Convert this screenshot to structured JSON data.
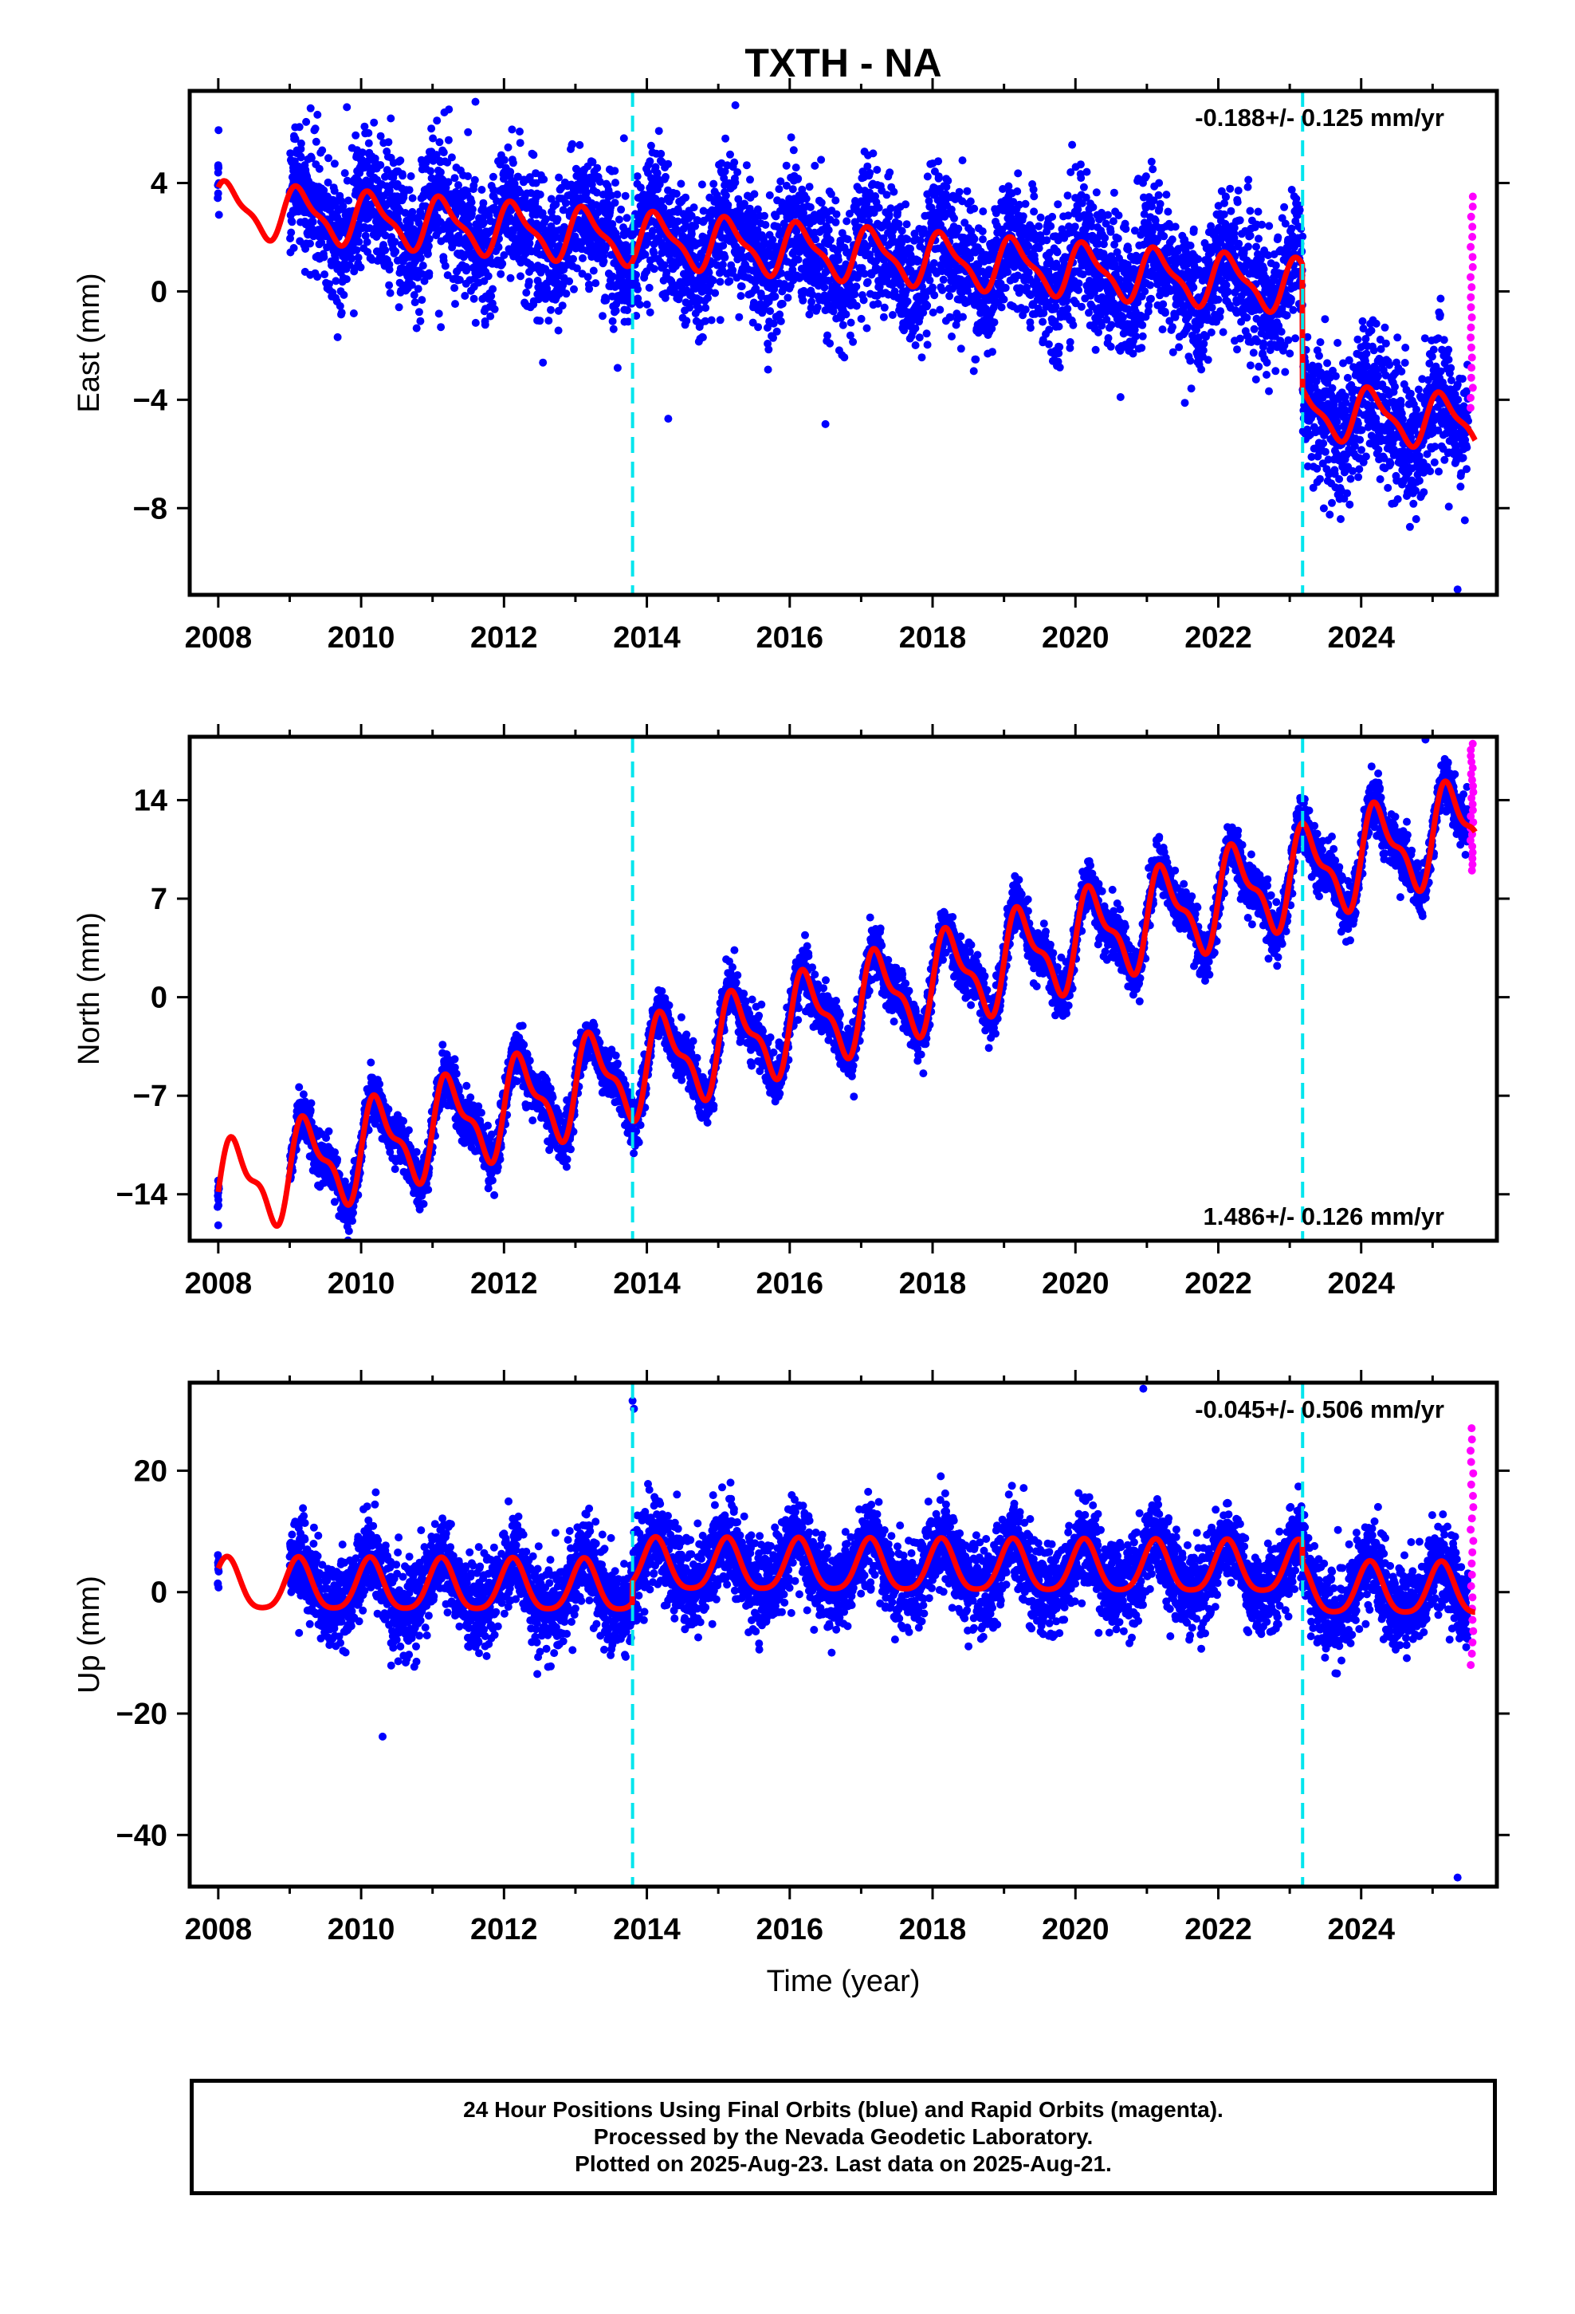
{
  "figure": {
    "title": "TXTH - NA",
    "xlabel": "Time (year)",
    "legend": {
      "line1": "24 Hour Positions Using Final Orbits (blue) and Rapid Orbits (magenta).",
      "line2": "Processed by the Nevada Geodetic Laboratory.",
      "line3": "Plotted on 2025-Aug-23. Last data on 2025-Aug-21."
    }
  },
  "colors": {
    "final_orbits": "#0000ff",
    "rapid_orbits": "#ff00ff",
    "model_fit": "#ff0000",
    "equipment_change": "#00e5ee"
  },
  "chart_data": [
    {
      "type": "scatter",
      "name": "east",
      "ylabel": "East (mm)",
      "rate_label": "-0.188+/- 0.125 mm/yr",
      "rate_label_position": "top-right",
      "xlim": [
        2007.6,
        2025.9
      ],
      "ylim": [
        -11.2,
        7.4
      ],
      "xticks": [
        2008,
        2010,
        2012,
        2014,
        2016,
        2018,
        2020,
        2022,
        2024
      ],
      "yticks": [
        4,
        0,
        -4,
        -8
      ],
      "vlines": [
        2013.8,
        2023.18
      ],
      "model": {
        "mean": 1.45,
        "rate": -0.188,
        "annual_amp": 0.9,
        "annual_phase": 0.6,
        "semiannual_amp": 0.3,
        "semiannual_phase": 1.2,
        "offsets": [
          {
            "year": 2023.18,
            "size": -4.6
          }
        ]
      },
      "scatter_sd": 1.25,
      "data_start": 2009.0,
      "rapid_range": [
        -4.3,
        3.5
      ],
      "outliers": [
        [
          2009.8,
          6.8
        ],
        [
          2011.6,
          7.0
        ],
        [
          2014.3,
          -4.7
        ],
        [
          2016.5,
          -4.9
        ],
        [
          2025.35,
          -11.0
        ]
      ]
    },
    {
      "type": "scatter",
      "name": "north",
      "ylabel": "North (mm)",
      "rate_label": "1.486+/- 0.126 mm/yr",
      "rate_label_position": "bottom-right",
      "xlim": [
        2007.6,
        2025.9
      ],
      "ylim": [
        -17.3,
        18.5
      ],
      "xticks": [
        2008,
        2010,
        2012,
        2014,
        2016,
        2018,
        2020,
        2022,
        2024
      ],
      "yticks": [
        14,
        7,
        0,
        -7,
        -14
      ],
      "vlines": [
        2013.8,
        2023.18
      ],
      "model": {
        "mean": -1.2,
        "rate": 1.486,
        "annual_amp": 3.0,
        "annual_phase": 0.0,
        "semiannual_amp": 1.2,
        "semiannual_phase": 0.0,
        "offsets": []
      },
      "scatter_sd": 0.9,
      "data_start": 2009.0,
      "rapid_range": [
        9.0,
        18.0
      ],
      "outliers": [
        [
          2008.0,
          -16.2
        ],
        [
          2024.9,
          18.3
        ]
      ]
    },
    {
      "type": "scatter",
      "name": "up",
      "ylabel": "Up (mm)",
      "rate_label": "-0.045+/- 0.506 mm/yr",
      "rate_label_position": "top-right",
      "xlim": [
        2007.6,
        2025.9
      ],
      "ylim": [
        -48.5,
        34.5
      ],
      "xticks": [
        2008,
        2010,
        2012,
        2014,
        2016,
        2018,
        2020,
        2022,
        2024
      ],
      "yticks": [
        20,
        0,
        -20,
        -40
      ],
      "vlines": [
        2013.8,
        2023.18
      ],
      "model": {
        "mean": 0.5,
        "rate": -0.045,
        "annual_amp": 4.2,
        "annual_phase": 0.8,
        "semiannual_amp": 0.8,
        "semiannual_phase": 0.0,
        "offsets": [
          {
            "year": 2013.8,
            "size": 3.5
          },
          {
            "year": 2023.18,
            "size": -3.5
          }
        ]
      },
      "scatter_sd": 3.6,
      "data_start": 2009.0,
      "rapid_range": [
        -12.0,
        27.0
      ],
      "outliers": [
        [
          2013.8,
          31.5
        ],
        [
          2013.82,
          30.2
        ],
        [
          2020.95,
          33.5
        ],
        [
          2010.3,
          -23.8
        ],
        [
          2025.35,
          -47.0
        ]
      ]
    }
  ]
}
